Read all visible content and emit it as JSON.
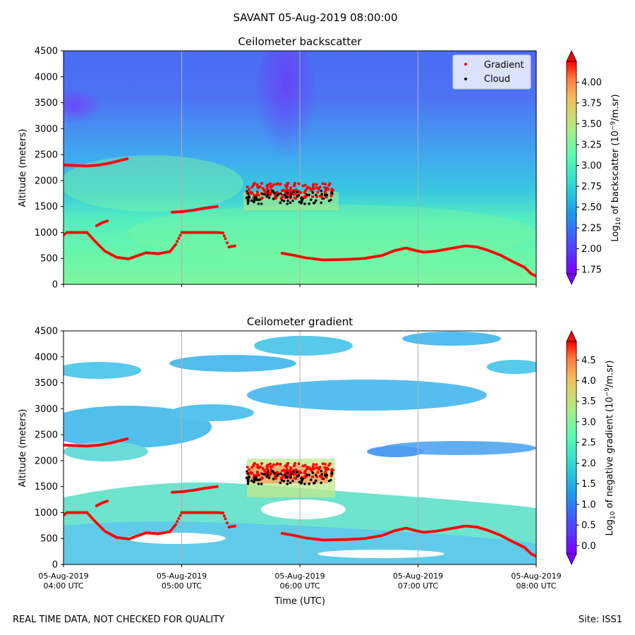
{
  "figure": {
    "suptitle": "SAVANT 05-Aug-2019 08:00:00",
    "footer_left": "REAL TIME DATA, NOT CHECKED FOR QUALITY",
    "footer_right": "Site: ISS1"
  },
  "colors": {
    "gradient_marker": "#ff0000",
    "cloud_marker": "#000000",
    "cmap": [
      "#8000ff",
      "#4c4cff",
      "#1e96f0",
      "#2fd9d0",
      "#5cfab0",
      "#b8e880",
      "#f0c060",
      "#ff7a3c",
      "#ff0000"
    ]
  },
  "chart_data": [
    {
      "type": "heatmap",
      "title": "Ceilometer backscatter",
      "xlabel": "",
      "ylabel": "Altitude (meters)",
      "ylim": [
        0,
        4500
      ],
      "yticks": [
        "0",
        "500",
        "1000",
        "1500",
        "2000",
        "2500",
        "3000",
        "3500",
        "4000",
        "4500"
      ],
      "colorbar": {
        "label_pre": "Log",
        "label_sub": "10",
        "label_mid": " of backscatter (10",
        "label_sup": "−9",
        "label_post": "/m.sr)",
        "range": [
          1.7,
          4.25
        ],
        "ticks": [
          "1.75",
          "2.00",
          "2.25",
          "2.50",
          "2.75",
          "3.00",
          "3.25",
          "3.50",
          "3.75",
          "4.00"
        ],
        "extend": "both"
      },
      "legend": {
        "position": "top-right",
        "entries": [
          {
            "name": "Gradient",
            "color": "#ff0000"
          },
          {
            "name": "Cloud",
            "color": "#000000"
          }
        ]
      }
    },
    {
      "type": "heatmap",
      "title": "Ceilometer gradient",
      "xlabel": "Time (UTC)",
      "ylabel": "Altitude (meters)",
      "ylim": [
        0,
        4500
      ],
      "yticks": [
        "0",
        "500",
        "1000",
        "1500",
        "2000",
        "2500",
        "3000",
        "3500",
        "4000",
        "4500"
      ],
      "xticks": [
        {
          "date": "05-Aug-2019",
          "time": "04:00 UTC"
        },
        {
          "date": "05-Aug-2019",
          "time": "05:00 UTC"
        },
        {
          "date": "05-Aug-2019",
          "time": "06:00 UTC"
        },
        {
          "date": "05-Aug-2019",
          "time": "07:00 UTC"
        },
        {
          "date": "05-Aug-2019",
          "time": "08:00 UTC"
        }
      ],
      "colorbar": {
        "label_pre": "Log",
        "label_sub": "10",
        "label_mid": " of negative gradient (10",
        "label_sup": "−9",
        "label_post": "/m.sr)",
        "range": [
          -0.2,
          4.95
        ],
        "ticks": [
          "0.0",
          "0.5",
          "1.0",
          "1.5",
          "2.0",
          "2.5",
          "3.0",
          "3.5",
          "4.0",
          "4.5"
        ],
        "extend": "both"
      }
    }
  ],
  "series": {
    "gradient_lower": [
      [
        4.0,
        950
      ],
      [
        4.03,
        1000
      ],
      [
        4.2,
        1000
      ],
      [
        4.25,
        870
      ],
      [
        4.35,
        640
      ],
      [
        4.45,
        520
      ],
      [
        4.55,
        490
      ],
      [
        4.6,
        530
      ],
      [
        4.7,
        610
      ],
      [
        4.8,
        590
      ],
      [
        4.9,
        630
      ],
      [
        4.95,
        770
      ],
      [
        5.0,
        1000
      ],
      [
        5.1,
        1000
      ],
      [
        5.2,
        1000
      ],
      [
        5.3,
        1000
      ],
      [
        5.35,
        990
      ],
      [
        5.37,
        880
      ],
      [
        5.4,
        720
      ],
      [
        5.45,
        740
      ]
    ],
    "gradient_lower2": [
      [
        5.85,
        600
      ],
      [
        5.95,
        560
      ],
      [
        6.05,
        510
      ],
      [
        6.2,
        470
      ],
      [
        6.4,
        480
      ],
      [
        6.55,
        500
      ],
      [
        6.7,
        560
      ],
      [
        6.8,
        650
      ],
      [
        6.9,
        700
      ],
      [
        7.0,
        640
      ],
      [
        7.05,
        620
      ],
      [
        7.15,
        640
      ],
      [
        7.3,
        700
      ],
      [
        7.4,
        740
      ],
      [
        7.5,
        720
      ],
      [
        7.6,
        650
      ],
      [
        7.7,
        560
      ],
      [
        7.8,
        440
      ],
      [
        7.9,
        330
      ],
      [
        7.96,
        200
      ],
      [
        8.0,
        160
      ]
    ],
    "gradient_upper": [
      [
        4.0,
        2300
      ],
      [
        4.1,
        2290
      ],
      [
        4.2,
        2280
      ],
      [
        4.3,
        2300
      ],
      [
        4.4,
        2340
      ],
      [
        4.5,
        2400
      ],
      [
        4.54,
        2420
      ]
    ],
    "gradient_mid": [
      [
        4.28,
        1130
      ],
      [
        4.33,
        1190
      ],
      [
        4.37,
        1220
      ]
    ],
    "gradient_bl": [
      [
        4.92,
        1390
      ],
      [
        5.0,
        1400
      ],
      [
        5.1,
        1430
      ],
      [
        5.2,
        1470
      ],
      [
        5.3,
        1500
      ]
    ],
    "cloud_core": {
      "t0": 5.55,
      "t1": 6.3,
      "alt_min": 1550,
      "alt_max": 1950
    }
  }
}
